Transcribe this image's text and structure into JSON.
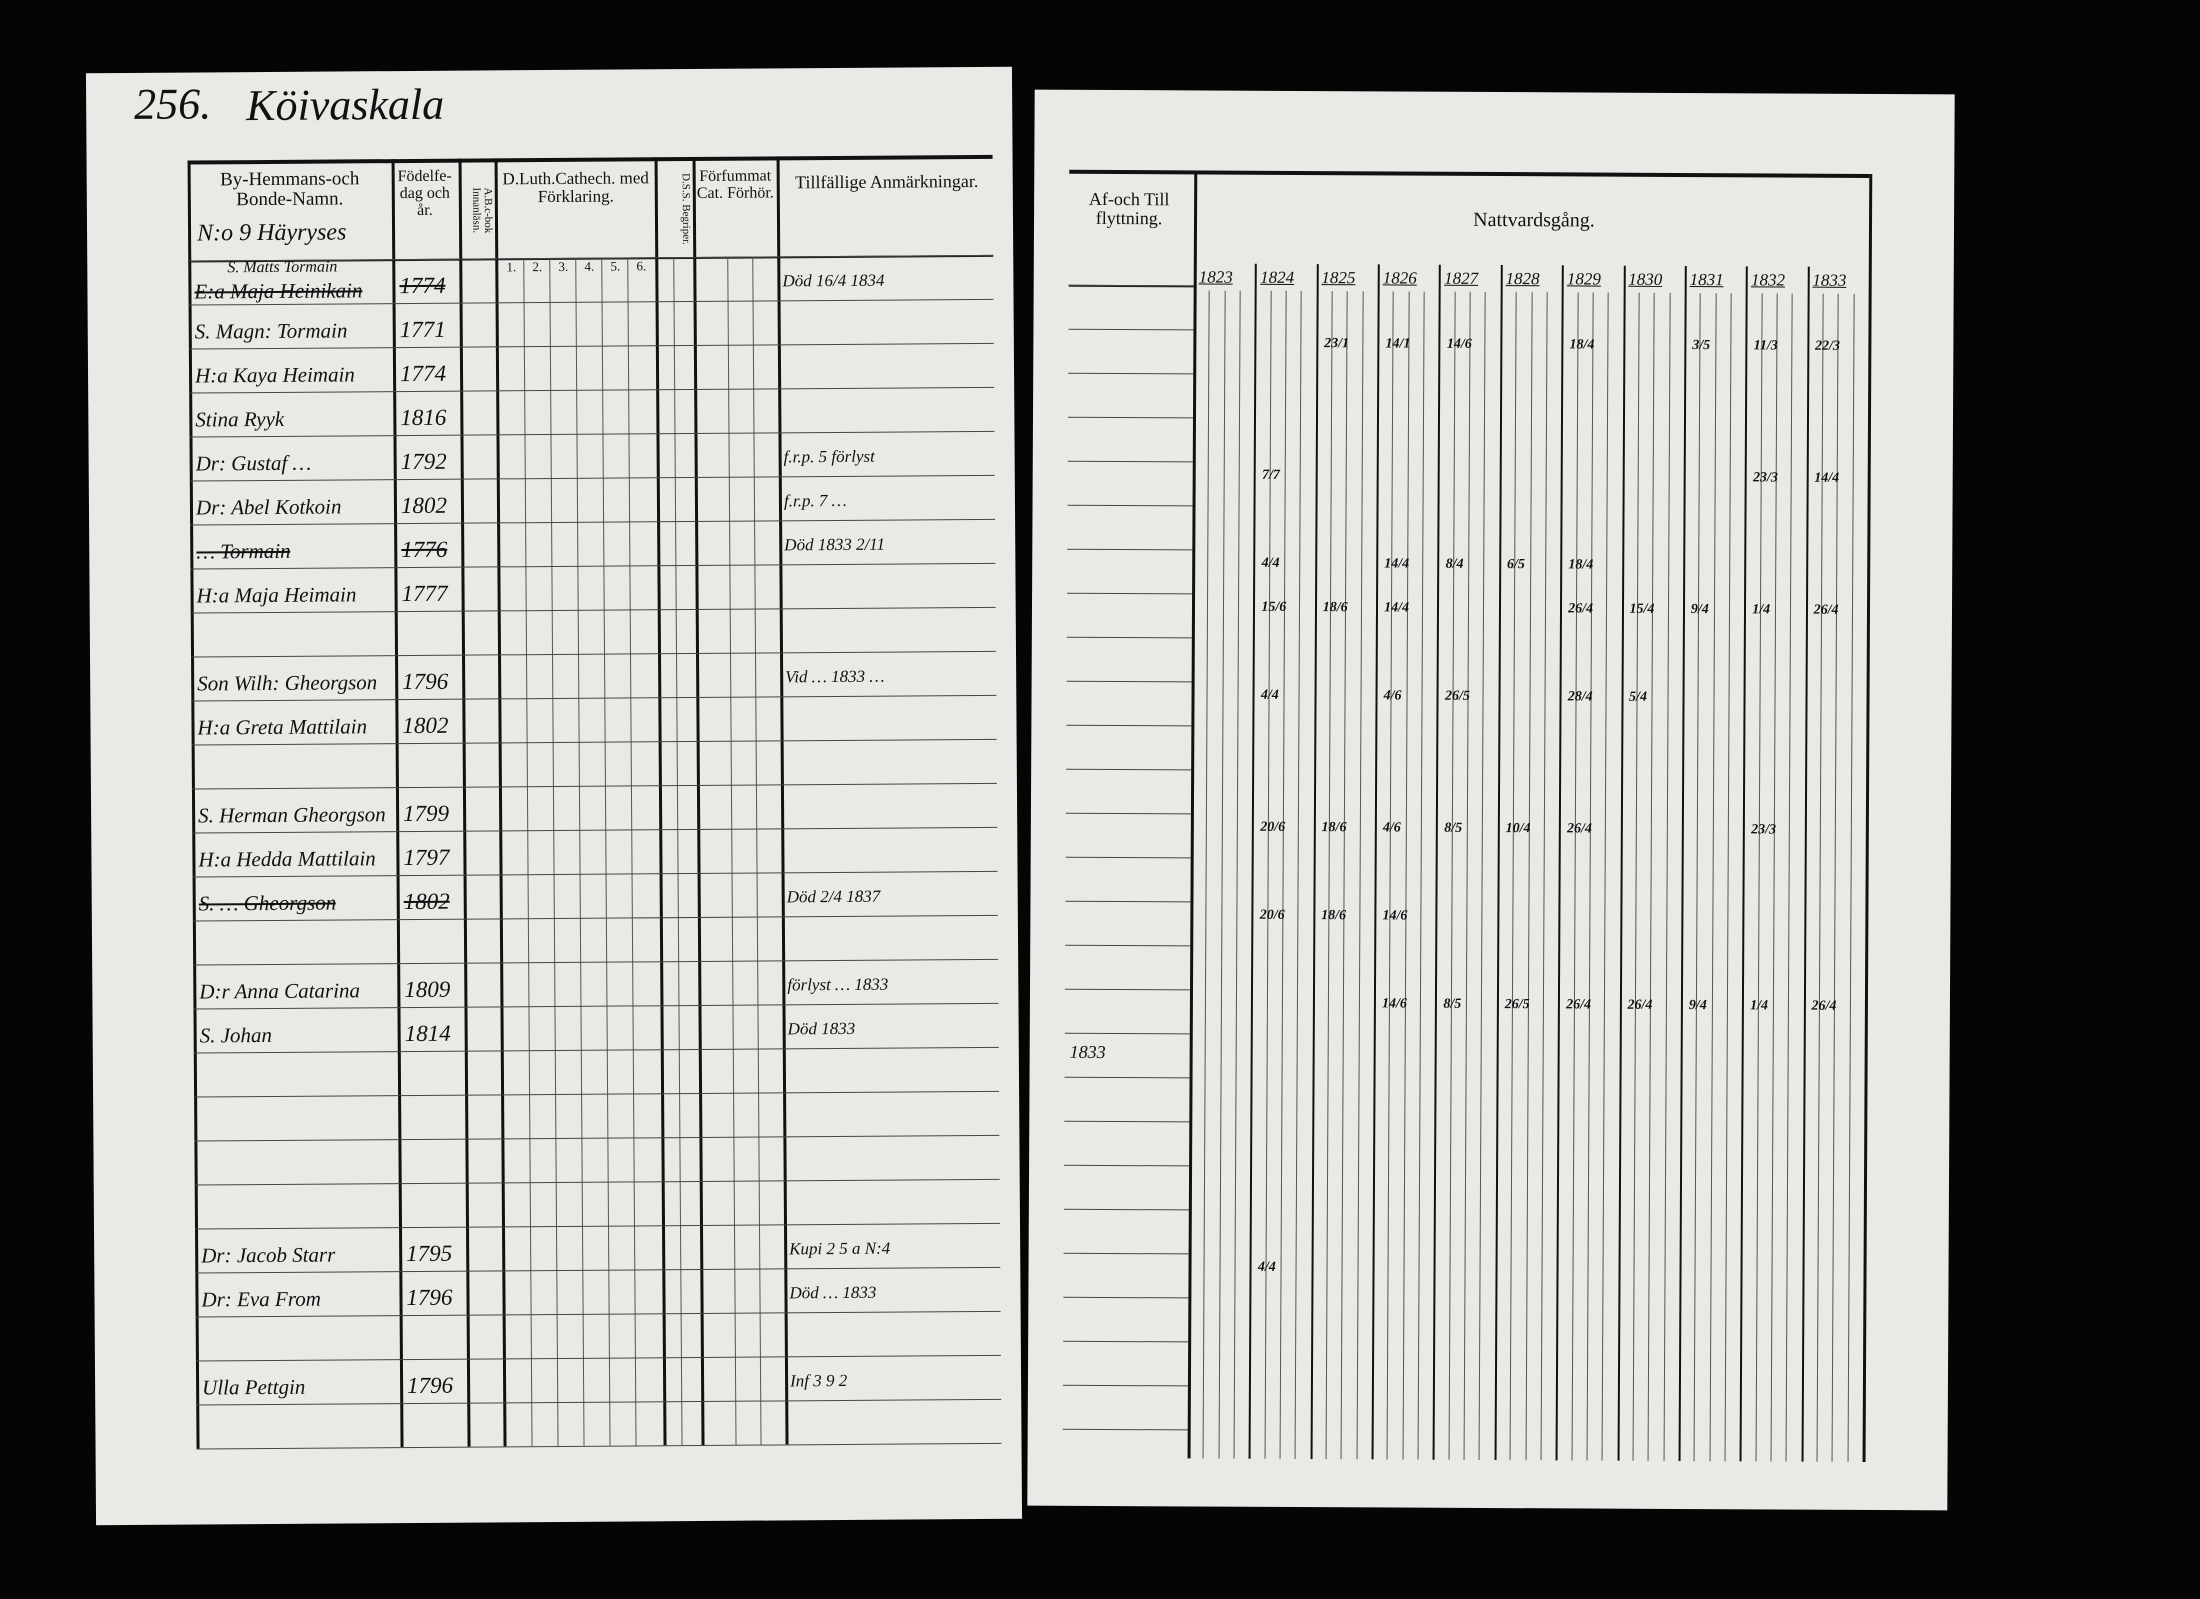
{
  "left_page": {
    "page_number": "256.",
    "village": "Köivaskala",
    "headers": {
      "name": "By-Hemmans-och Bonde-Namn.",
      "birth": "Födelfe-dag och år.",
      "abc": "A.B.c-bok Innanläsn.",
      "catechism": "D.Luth.Cathech. med Förklaring.",
      "catechism_sub": [
        "1.",
        "2.",
        "3.",
        "4.",
        "5.",
        "6."
      ],
      "dss": "D.S.S. Begriper.",
      "forfummat": "Förfummat Cat. Förhör.",
      "remarks": "Tillfällige Anmärkningar."
    },
    "homestead": "N:o 9 Häyryses",
    "entries": [
      {
        "row": 0,
        "pre": "S. Matts Tormain",
        "name": "E:a Maja Heinikain",
        "year": "1774",
        "struck": true,
        "remark": "Död 16/4 1834"
      },
      {
        "row": 1,
        "name": "S. Magn: Tormain",
        "year": "1771",
        "remark": ""
      },
      {
        "row": 2,
        "name": "H:a Kaya Heimain",
        "year": "1774",
        "remark": ""
      },
      {
        "row": 3,
        "name": "Stina Ryyk",
        "year": "1816",
        "remark": ""
      },
      {
        "row": 4,
        "name": "Dr: Gustaf …",
        "year": "1792",
        "remark": "f.r.p. 5 förlyst"
      },
      {
        "row": 5,
        "name": "Dr: Abel Kotkoin",
        "year": "1802",
        "remark": "f.r.p. 7 …"
      },
      {
        "row": 6,
        "name": "… Tormain",
        "year": "1776",
        "struck": true,
        "remark": "Död 1833 2/11"
      },
      {
        "row": 7,
        "name": "H:a Maja Heimain",
        "year": "1777",
        "remark": ""
      },
      {
        "row": 9,
        "name": "Son Wilh: Gheorgson",
        "year": "1796",
        "remark": "Vid … 1833 …"
      },
      {
        "row": 10,
        "name": "H:a Greta Mattilain",
        "year": "1802",
        "remark": ""
      },
      {
        "row": 12,
        "name": "S. Herman Gheorgson",
        "year": "1799",
        "remark": ""
      },
      {
        "row": 13,
        "name": "H:a Hedda Mattilain",
        "year": "1797",
        "remark": ""
      },
      {
        "row": 14,
        "name": "S. … Gheorgson",
        "year": "1802",
        "struck": true,
        "remark": "Död 2/4 1837"
      },
      {
        "row": 16,
        "name": "D:r Anna Catarina",
        "year": "1809",
        "remark": "förlyst … 1833"
      },
      {
        "row": 17,
        "name": "S. Johan",
        "year": "1814",
        "remark": "Död 1833"
      },
      {
        "row": 22,
        "name": "Dr: Jacob Starr",
        "year": "1795",
        "remark": "Kupi 2 5 a N:4"
      },
      {
        "row": 23,
        "name": "Dr: Eva From",
        "year": "1796",
        "remark": "Död … 1833"
      },
      {
        "row": 25,
        "name": "Ulla Pettgin",
        "year": "1796",
        "remark": "Inf 3 9 2"
      }
    ]
  },
  "right_page": {
    "headers": {
      "moving": "Af-och Till flyttning.",
      "communion": "Nattvardsgång."
    },
    "years": [
      "1823",
      "1824",
      "1825",
      "1826",
      "1827",
      "1828",
      "1829",
      "1830",
      "1831",
      "1832",
      "1833"
    ],
    "moving_entries": [
      {
        "row": 17,
        "text": "1833"
      }
    ],
    "marks": [
      {
        "row": 1,
        "col": 2,
        "text": "23/1"
      },
      {
        "row": 1,
        "col": 3,
        "text": "14/1"
      },
      {
        "row": 1,
        "col": 4,
        "text": "14/6"
      },
      {
        "row": 1,
        "col": 6,
        "text": "18/4"
      },
      {
        "row": 1,
        "col": 8,
        "text": "3/5"
      },
      {
        "row": 1,
        "col": 9,
        "text": "11/3"
      },
      {
        "row": 1,
        "col": 10,
        "text": "22/3"
      },
      {
        "row": 4,
        "col": 1,
        "text": "7/7"
      },
      {
        "row": 4,
        "col": 9,
        "text": "23/3"
      },
      {
        "row": 4,
        "col": 10,
        "text": "14/4"
      },
      {
        "row": 6,
        "col": 1,
        "text": "4/4"
      },
      {
        "row": 6,
        "col": 3,
        "text": "14/4"
      },
      {
        "row": 6,
        "col": 4,
        "text": "8/4"
      },
      {
        "row": 6,
        "col": 5,
        "text": "6/5"
      },
      {
        "row": 6,
        "col": 6,
        "text": "18/4"
      },
      {
        "row": 7,
        "col": 1,
        "text": "15/6"
      },
      {
        "row": 7,
        "col": 2,
        "text": "18/6"
      },
      {
        "row": 7,
        "col": 3,
        "text": "14/4"
      },
      {
        "row": 7,
        "col": 6,
        "text": "26/4"
      },
      {
        "row": 7,
        "col": 7,
        "text": "15/4"
      },
      {
        "row": 7,
        "col": 8,
        "text": "9/4"
      },
      {
        "row": 7,
        "col": 9,
        "text": "1/4"
      },
      {
        "row": 7,
        "col": 10,
        "text": "26/4"
      },
      {
        "row": 9,
        "col": 1,
        "text": "4/4"
      },
      {
        "row": 9,
        "col": 3,
        "text": "4/6"
      },
      {
        "row": 9,
        "col": 4,
        "text": "26/5"
      },
      {
        "row": 9,
        "col": 6,
        "text": "28/4"
      },
      {
        "row": 9,
        "col": 7,
        "text": "5/4"
      },
      {
        "row": 12,
        "col": 1,
        "text": "20/6"
      },
      {
        "row": 12,
        "col": 2,
        "text": "18/6"
      },
      {
        "row": 12,
        "col": 3,
        "text": "4/6"
      },
      {
        "row": 12,
        "col": 4,
        "text": "8/5"
      },
      {
        "row": 12,
        "col": 5,
        "text": "10/4"
      },
      {
        "row": 12,
        "col": 6,
        "text": "26/4"
      },
      {
        "row": 12,
        "col": 9,
        "text": "23/3"
      },
      {
        "row": 14,
        "col": 1,
        "text": "20/6"
      },
      {
        "row": 14,
        "col": 2,
        "text": "18/6"
      },
      {
        "row": 14,
        "col": 3,
        "text": "14/6"
      },
      {
        "row": 16,
        "col": 3,
        "text": "14/6"
      },
      {
        "row": 16,
        "col": 4,
        "text": "8/5"
      },
      {
        "row": 16,
        "col": 5,
        "text": "26/5"
      },
      {
        "row": 16,
        "col": 6,
        "text": "26/4"
      },
      {
        "row": 16,
        "col": 7,
        "text": "26/4"
      },
      {
        "row": 16,
        "col": 8,
        "text": "9/4"
      },
      {
        "row": 16,
        "col": 9,
        "text": "1/4"
      },
      {
        "row": 16,
        "col": 10,
        "text": "26/4"
      },
      {
        "row": 22,
        "col": 1,
        "text": "4/4"
      }
    ]
  }
}
